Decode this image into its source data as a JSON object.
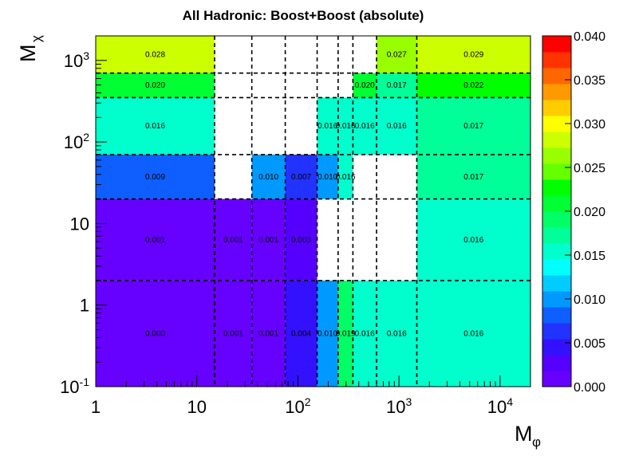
{
  "chart_data": {
    "type": "heatmap",
    "title": "All Hadronic: Boost+Boost (absolute)",
    "xlabel": {
      "main": "M",
      "sub": "φ"
    },
    "ylabel": {
      "main": "M",
      "sub": "χ"
    },
    "x_scale": "log",
    "y_scale": "log",
    "xlim": [
      1,
      20000
    ],
    "ylim": [
      0.1,
      2000
    ],
    "x_ticks": [
      {
        "value": 1,
        "main": "1",
        "sup": ""
      },
      {
        "value": 10,
        "main": "10",
        "sup": ""
      },
      {
        "value": 100,
        "main": "10",
        "sup": "2"
      },
      {
        "value": 1000,
        "main": "10",
        "sup": "3"
      },
      {
        "value": 10000,
        "main": "10",
        "sup": "4"
      }
    ],
    "y_ticks": [
      {
        "value": 0.1,
        "main": "10",
        "sup": "-1"
      },
      {
        "value": 1,
        "main": "1",
        "sup": ""
      },
      {
        "value": 10,
        "main": "10",
        "sup": ""
      },
      {
        "value": 100,
        "main": "10",
        "sup": "2"
      },
      {
        "value": 1000,
        "main": "10",
        "sup": "3"
      }
    ],
    "x_edges": [
      1,
      15,
      35,
      75,
      155,
      250,
      350,
      600,
      1500,
      20000
    ],
    "y_edges": [
      0.1,
      2,
      20,
      70,
      350,
      700,
      2000
    ],
    "zlim": [
      0.0,
      0.04
    ],
    "colorbar_ticks": [
      "0.000",
      "0.005",
      "0.010",
      "0.015",
      "0.020",
      "0.025",
      "0.030",
      "0.035",
      "0.040"
    ],
    "palette": [
      "#6600ff",
      "#5500ff",
      "#3311ff",
      "#2233ff",
      "#0f5eff",
      "#0099ff",
      "#00ccff",
      "#00ffff",
      "#00ffcc",
      "#00ff99",
      "#00ff66",
      "#00ff33",
      "#00ff00",
      "#66ff00",
      "#99ff00",
      "#ccff00",
      "#ffff00",
      "#ffcc00",
      "#ff9900",
      "#ff6600",
      "#ff3300",
      "#ff0000"
    ],
    "cells": [
      {
        "x": [
          1,
          15
        ],
        "y": [
          700,
          2000
        ],
        "value": 0.028,
        "label": "0.028"
      },
      {
        "x": [
          600,
          1500
        ],
        "y": [
          700,
          2000
        ],
        "value": 0.027,
        "label": "0.027"
      },
      {
        "x": [
          1500,
          20000
        ],
        "y": [
          700,
          2000
        ],
        "value": 0.029,
        "label": "0.029"
      },
      {
        "x": [
          1,
          15
        ],
        "y": [
          350,
          700
        ],
        "value": 0.02,
        "label": "0.020"
      },
      {
        "x": [
          350,
          600
        ],
        "y": [
          350,
          700
        ],
        "value": 0.02,
        "label": "0.020"
      },
      {
        "x": [
          600,
          1500
        ],
        "y": [
          350,
          700
        ],
        "value": 0.017,
        "label": "0.017"
      },
      {
        "x": [
          1500,
          20000
        ],
        "y": [
          350,
          700
        ],
        "value": 0.022,
        "label": "0.022"
      },
      {
        "x": [
          1,
          15
        ],
        "y": [
          70,
          350
        ],
        "value": 0.016,
        "label": "0.016"
      },
      {
        "x": [
          155,
          250
        ],
        "y": [
          70,
          350
        ],
        "value": 0.016,
        "label": "0.016"
      },
      {
        "x": [
          250,
          350
        ],
        "y": [
          70,
          350
        ],
        "value": 0.016,
        "label": "0.016"
      },
      {
        "x": [
          350,
          600
        ],
        "y": [
          70,
          350
        ],
        "value": 0.016,
        "label": "0.016"
      },
      {
        "x": [
          600,
          1500
        ],
        "y": [
          70,
          350
        ],
        "value": 0.016,
        "label": "0.016"
      },
      {
        "x": [
          1500,
          20000
        ],
        "y": [
          70,
          350
        ],
        "value": 0.017,
        "label": "0.017"
      },
      {
        "x": [
          1,
          15
        ],
        "y": [
          20,
          70
        ],
        "value": 0.009,
        "label": "0.009"
      },
      {
        "x": [
          35,
          75
        ],
        "y": [
          20,
          70
        ],
        "value": 0.01,
        "label": "0.010"
      },
      {
        "x": [
          75,
          155
        ],
        "y": [
          20,
          70
        ],
        "value": 0.007,
        "label": "0.007"
      },
      {
        "x": [
          155,
          250
        ],
        "y": [
          20,
          70
        ],
        "value": 0.01,
        "label": "0.010"
      },
      {
        "x": [
          250,
          350
        ],
        "y": [
          20,
          70
        ],
        "value": 0.016,
        "label": "0.016"
      },
      {
        "x": [
          1500,
          20000
        ],
        "y": [
          20,
          70
        ],
        "value": 0.017,
        "label": "0.017"
      },
      {
        "x": [
          1,
          15
        ],
        "y": [
          2,
          20
        ],
        "value": 0.001,
        "label": "0.001"
      },
      {
        "x": [
          15,
          35
        ],
        "y": [
          2,
          20
        ],
        "value": 0.001,
        "label": "0.001"
      },
      {
        "x": [
          35,
          75
        ],
        "y": [
          2,
          20
        ],
        "value": 0.001,
        "label": "0.001"
      },
      {
        "x": [
          75,
          155
        ],
        "y": [
          2,
          20
        ],
        "value": 0.003,
        "label": "0.003"
      },
      {
        "x": [
          1500,
          20000
        ],
        "y": [
          2,
          20
        ],
        "value": 0.016,
        "label": "0.016"
      },
      {
        "x": [
          1,
          15
        ],
        "y": [
          0.1,
          2
        ],
        "value": 0.0,
        "label": "0.000"
      },
      {
        "x": [
          15,
          35
        ],
        "y": [
          0.1,
          2
        ],
        "value": 0.001,
        "label": "0.001"
      },
      {
        "x": [
          35,
          75
        ],
        "y": [
          0.1,
          2
        ],
        "value": 0.001,
        "label": "0.001"
      },
      {
        "x": [
          75,
          155
        ],
        "y": [
          0.1,
          2
        ],
        "value": 0.004,
        "label": "0.004"
      },
      {
        "x": [
          155,
          250
        ],
        "y": [
          0.1,
          2
        ],
        "value": 0.01,
        "label": "0.010"
      },
      {
        "x": [
          250,
          350
        ],
        "y": [
          0.1,
          2
        ],
        "value": 0.019,
        "label": "0.019"
      },
      {
        "x": [
          350,
          600
        ],
        "y": [
          0.1,
          2
        ],
        "value": 0.016,
        "label": "0.016"
      },
      {
        "x": [
          600,
          1500
        ],
        "y": [
          0.1,
          2
        ],
        "value": 0.016,
        "label": "0.016"
      },
      {
        "x": [
          1500,
          20000
        ],
        "y": [
          0.1,
          2
        ],
        "value": 0.016,
        "label": "0.016"
      }
    ],
    "grid": "dashed bin edges",
    "colorbar": "right"
  }
}
